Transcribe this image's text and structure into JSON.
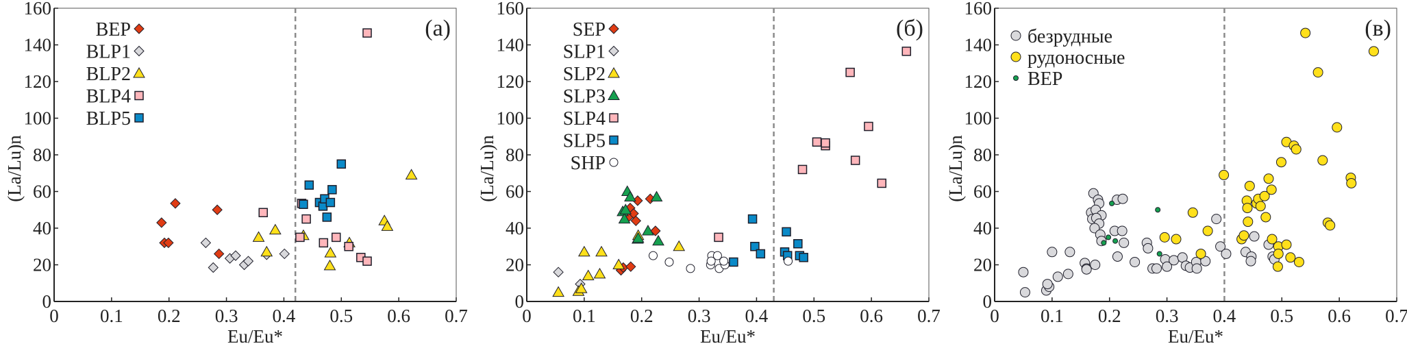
{
  "chart_data": [
    {
      "type": "scatter",
      "panel_label": "(a)",
      "xlabel": "Eu/Eu*",
      "ylabel": "(La/Lu)n",
      "xlim": [
        0,
        0.7
      ],
      "ylim": [
        0,
        160
      ],
      "xticks": [
        "0",
        "0.1",
        "0.2",
        "0.3",
        "0.4",
        "0.5",
        "0.6",
        "0.7"
      ],
      "yticks": [
        "0",
        "20",
        "40",
        "60",
        "80",
        "100",
        "120",
        "140",
        "160"
      ],
      "reference_line_x": 0.42,
      "legend_position": "top-left",
      "series": [
        {
          "name": "BEP",
          "marker": "diamond",
          "color": "#e03c14",
          "points": [
            [
              0.187,
              43
            ],
            [
              0.192,
              32
            ],
            [
              0.199,
              32
            ],
            [
              0.211,
              53.5
            ],
            [
              0.284,
              50
            ],
            [
              0.287,
              26
            ]
          ]
        },
        {
          "name": "BLP1",
          "marker": "diamond",
          "color": "#d9d9dc",
          "points": [
            [
              0.264,
              32
            ],
            [
              0.277,
              18.5
            ],
            [
              0.306,
              23.5
            ],
            [
              0.316,
              25
            ],
            [
              0.331,
              20
            ],
            [
              0.338,
              22
            ],
            [
              0.37,
              25.5
            ],
            [
              0.401,
              26
            ]
          ]
        },
        {
          "name": "BLP2",
          "marker": "triangle",
          "color": "#ffe01b",
          "points": [
            [
              0.356,
              35
            ],
            [
              0.385,
              39
            ],
            [
              0.37,
              27
            ],
            [
              0.434,
              36
            ],
            [
              0.481,
              26.5
            ],
            [
              0.48,
              19.5
            ],
            [
              0.514,
              32
            ],
            [
              0.575,
              44
            ],
            [
              0.58,
              41
            ],
            [
              0.622,
              69
            ]
          ]
        },
        {
          "name": "BLP4",
          "marker": "square",
          "color": "#ffb6bb",
          "points": [
            [
              0.364,
              48.5
            ],
            [
              0.431,
              53.5
            ],
            [
              0.439,
              45
            ],
            [
              0.428,
              35
            ],
            [
              0.469,
              32
            ],
            [
              0.491,
              35
            ],
            [
              0.513,
              30
            ],
            [
              0.534,
              24
            ],
            [
              0.545,
              22
            ],
            [
              0.545,
              146.5
            ]
          ]
        },
        {
          "name": "BLP5",
          "marker": "square",
          "color": "#0a8ac8",
          "points": [
            [
              0.434,
              53
            ],
            [
              0.444,
              63.5
            ],
            [
              0.462,
              54
            ],
            [
              0.468,
              52
            ],
            [
              0.471,
              56
            ],
            [
              0.481,
              54
            ],
            [
              0.484,
              61
            ],
            [
              0.5,
              75
            ],
            [
              0.475,
              46
            ]
          ]
        }
      ]
    },
    {
      "type": "scatter",
      "panel_label": "(б)",
      "xlabel": "Eu/Eu*",
      "ylabel": "(La/Lu)n",
      "xlim": [
        0,
        0.7
      ],
      "ylim": [
        0,
        160
      ],
      "xticks": [
        "0",
        "0.1",
        "0.2",
        "0.3",
        "0.4",
        "0.5",
        "0.6",
        "0.7"
      ],
      "yticks": [
        "0",
        "20",
        "40",
        "60",
        "80",
        "100",
        "120",
        "140",
        "160"
      ],
      "reference_line_x": 0.43,
      "legend_position": "top-left",
      "series": [
        {
          "name": "SEP",
          "marker": "diamond",
          "color": "#e03c14",
          "points": [
            [
              0.164,
              17
            ],
            [
              0.168,
              18.5
            ],
            [
              0.181,
              19
            ],
            [
              0.177,
              46
            ],
            [
              0.18,
              51
            ],
            [
              0.186,
              48
            ],
            [
              0.19,
              44
            ],
            [
              0.193,
              55
            ],
            [
              0.215,
              56
            ],
            [
              0.224,
              38.5
            ]
          ]
        },
        {
          "name": "SLP1",
          "marker": "diamond",
          "color": "#d9d9dc",
          "points": [
            [
              0.055,
              16
            ],
            [
              0.093,
              9.5
            ]
          ]
        },
        {
          "name": "SLP2",
          "marker": "triangle",
          "color": "#ffe01b",
          "points": [
            [
              0.055,
              5
            ],
            [
              0.09,
              5.5
            ],
            [
              0.095,
              7
            ],
            [
              0.1,
              27
            ],
            [
              0.107,
              14
            ],
            [
              0.127,
              15
            ],
            [
              0.13,
              27
            ],
            [
              0.16,
              20
            ],
            [
              0.194,
              36
            ],
            [
              0.265,
              30
            ]
          ]
        },
        {
          "name": "SLP3",
          "marker": "triangle",
          "color": "#16a050",
          "points": [
            [
              0.167,
              49
            ],
            [
              0.17,
              45
            ],
            [
              0.172,
              50
            ],
            [
              0.175,
              60
            ],
            [
              0.18,
              57
            ],
            [
              0.193,
              34
            ],
            [
              0.194,
              34.5
            ],
            [
              0.211,
              38.5
            ],
            [
              0.226,
              57
            ],
            [
              0.229,
              33
            ]
          ]
        },
        {
          "name": "SLP4",
          "marker": "square",
          "color": "#ffb6bb",
          "points": [
            [
              0.334,
              35
            ],
            [
              0.48,
              72
            ],
            [
              0.505,
              87
            ],
            [
              0.52,
              85
            ],
            [
              0.52,
              86.5
            ],
            [
              0.563,
              125
            ],
            [
              0.572,
              77
            ],
            [
              0.595,
              95.5
            ],
            [
              0.618,
              64.5
            ],
            [
              0.661,
              136.5
            ]
          ]
        },
        {
          "name": "SLP5",
          "marker": "square",
          "color": "#0a8ac8",
          "points": [
            [
              0.36,
              21.5
            ],
            [
              0.393,
              45
            ],
            [
              0.397,
              30
            ],
            [
              0.407,
              26
            ],
            [
              0.449,
              27
            ],
            [
              0.452,
              38
            ],
            [
              0.454,
              25
            ],
            [
              0.472,
              31.5
            ],
            [
              0.475,
              25
            ],
            [
              0.482,
              24
            ]
          ]
        },
        {
          "name": "SHP",
          "marker": "circle",
          "color": "#ffffff",
          "points": [
            [
              0.22,
              25
            ],
            [
              0.248,
              21.5
            ],
            [
              0.285,
              18
            ],
            [
              0.32,
              20
            ],
            [
              0.322,
              25
            ],
            [
              0.321,
              22
            ],
            [
              0.332,
              25
            ],
            [
              0.335,
              18
            ],
            [
              0.345,
              20
            ],
            [
              0.343,
              22
            ],
            [
              0.455,
              22
            ]
          ]
        }
      ]
    },
    {
      "type": "scatter",
      "panel_label": "(в)",
      "xlabel": "Eu/Eu*",
      "ylabel": "(La/Lu)n",
      "xlim": [
        0,
        0.7
      ],
      "ylim": [
        0,
        160
      ],
      "xticks": [
        "0",
        "0.1",
        "0.2",
        "0.3",
        "0.4",
        "0.5",
        "0.6",
        "0.7"
      ],
      "yticks": [
        "0",
        "20",
        "40",
        "60",
        "80",
        "100",
        "120",
        "140",
        "160"
      ],
      "reference_line_x": 0.4,
      "legend_position": "top-left",
      "series": [
        {
          "name": "безрудные",
          "marker": "circle",
          "color": "#d9d9dc",
          "size": "large",
          "points": [
            [
              0.05,
              16
            ],
            [
              0.053,
              5
            ],
            [
              0.09,
              6
            ],
            [
              0.095,
              8
            ],
            [
              0.092,
              9.5
            ],
            [
              0.1,
              27
            ],
            [
              0.11,
              13.5
            ],
            [
              0.131,
              27
            ],
            [
              0.128,
              15
            ],
            [
              0.157,
              21
            ],
            [
              0.16,
              18
            ],
            [
              0.16,
              17.5
            ],
            [
              0.175,
              20
            ],
            [
              0.172,
              59
            ],
            [
              0.18,
              55.5
            ],
            [
              0.182,
              53.5
            ],
            [
              0.168,
              48.5
            ],
            [
              0.176,
              50
            ],
            [
              0.186,
              47
            ],
            [
              0.17,
              45
            ],
            [
              0.177,
              45.5
            ],
            [
              0.182,
              42.5
            ],
            [
              0.174,
              40
            ],
            [
              0.184,
              36.5
            ],
            [
              0.186,
              33
            ],
            [
              0.213,
              55.5
            ],
            [
              0.223,
              56
            ],
            [
              0.209,
              38.5
            ],
            [
              0.222,
              38.5
            ],
            [
              0.225,
              32
            ],
            [
              0.214,
              24.5
            ],
            [
              0.244,
              21.5
            ],
            [
              0.265,
              32
            ],
            [
              0.267,
              29
            ],
            [
              0.275,
              18
            ],
            [
              0.282,
              18
            ],
            [
              0.297,
              23
            ],
            [
              0.3,
              19
            ],
            [
              0.312,
              22.5
            ],
            [
              0.327,
              24
            ],
            [
              0.333,
              19.5
            ],
            [
              0.34,
              18.5
            ],
            [
              0.351,
              21.5
            ],
            [
              0.352,
              18
            ],
            [
              0.367,
              22
            ],
            [
              0.393,
              30
            ],
            [
              0.386,
              45
            ],
            [
              0.403,
              26
            ],
            [
              0.452,
              35.5
            ],
            [
              0.437,
              27
            ],
            [
              0.447,
              24.5
            ],
            [
              0.446,
              22
            ],
            [
              0.477,
              31
            ],
            [
              0.484,
              24.5
            ],
            [
              0.487,
              23
            ]
          ]
        },
        {
          "name": "рудоносные",
          "marker": "circle",
          "color": "#ffe01b",
          "size": "large",
          "points": [
            [
              0.296,
              35
            ],
            [
              0.316,
              34
            ],
            [
              0.345,
              48.5
            ],
            [
              0.359,
              26
            ],
            [
              0.371,
              38.5
            ],
            [
              0.399,
              69
            ],
            [
              0.43,
              34
            ],
            [
              0.434,
              36
            ],
            [
              0.439,
              55
            ],
            [
              0.44,
              51
            ],
            [
              0.441,
              43.5
            ],
            [
              0.444,
              63
            ],
            [
              0.456,
              53.5
            ],
            [
              0.459,
              56
            ],
            [
              0.463,
              52
            ],
            [
              0.47,
              57.5
            ],
            [
              0.472,
              46
            ],
            [
              0.482,
              61
            ],
            [
              0.477,
              67
            ],
            [
              0.494,
              30
            ],
            [
              0.494,
              26
            ],
            [
              0.493,
              19
            ],
            [
              0.508,
              31
            ],
            [
              0.515,
              24
            ],
            [
              0.499,
              76
            ],
            [
              0.508,
              87
            ],
            [
              0.521,
              85
            ],
            [
              0.525,
              83
            ],
            [
              0.541,
              146.5
            ],
            [
              0.563,
              125
            ],
            [
              0.571,
              77
            ],
            [
              0.58,
              43
            ],
            [
              0.584,
              41.5
            ],
            [
              0.596,
              95
            ],
            [
              0.62,
              67.5
            ],
            [
              0.621,
              64.5
            ],
            [
              0.66,
              136.5
            ],
            [
              0.53,
              21.5
            ],
            [
              0.483,
              34
            ]
          ]
        },
        {
          "name": "BEP",
          "marker": "circle",
          "color": "#16a050",
          "size": "small",
          "points": [
            [
              0.19,
              32
            ],
            [
              0.204,
              53.5
            ],
            [
              0.198,
              35
            ],
            [
              0.21,
              33
            ],
            [
              0.284,
              50
            ],
            [
              0.287,
              26
            ]
          ]
        }
      ]
    }
  ]
}
